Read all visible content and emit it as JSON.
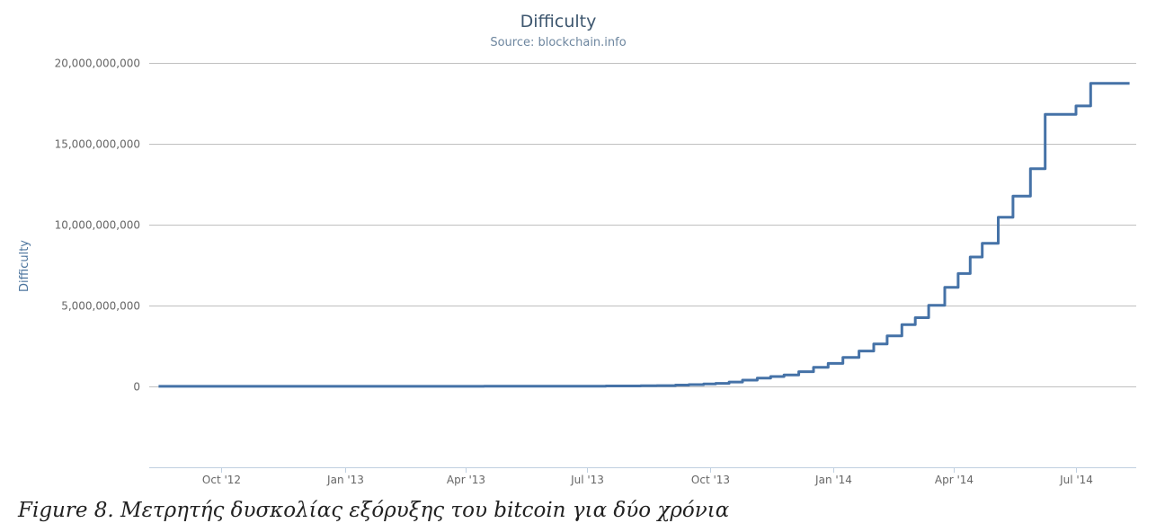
{
  "chart_data": {
    "type": "line",
    "title": "Difficulty",
    "subtitle": "Source: blockchain.info",
    "ylabel": "Difficulty",
    "xlabel": "",
    "ylim": [
      -5000000000,
      20000000000
    ],
    "yticks": [
      0,
      5000000000,
      10000000000,
      15000000000,
      20000000000
    ],
    "ytick_labels": [
      "0",
      "5,000,000,000",
      "10,000,000,000",
      "15,000,000,000",
      "20,000,000,000"
    ],
    "xlim": [
      "2012-08-08",
      "2014-08-15"
    ],
    "xticks": [
      "2012-10-01",
      "2013-01-01",
      "2013-04-01",
      "2013-07-01",
      "2013-10-01",
      "2014-01-01",
      "2014-04-01",
      "2014-07-01"
    ],
    "xtick_labels": [
      "Oct '12",
      "Jan '13",
      "Apr '13",
      "Jul '13",
      "Oct '13",
      "Jan '14",
      "Apr '14",
      "Jul '14"
    ],
    "grid": true,
    "legend": "none",
    "series_color": "#4572a7",
    "series": [
      {
        "step": true,
        "x": [
          "2012-08-15",
          "2012-09-15",
          "2012-10-15",
          "2012-11-15",
          "2012-12-15",
          "2013-01-15",
          "2013-02-15",
          "2013-03-15",
          "2013-04-15",
          "2013-05-15",
          "2013-06-15",
          "2013-07-15",
          "2013-08-10",
          "2013-08-22",
          "2013-09-05",
          "2013-09-15",
          "2013-09-26",
          "2013-10-05",
          "2013-10-15",
          "2013-10-25",
          "2013-11-05",
          "2013-11-15",
          "2013-11-25",
          "2013-12-06",
          "2013-12-17",
          "2013-12-28",
          "2014-01-08",
          "2014-01-20",
          "2014-01-31",
          "2014-02-10",
          "2014-02-21",
          "2014-03-03",
          "2014-03-13",
          "2014-03-25",
          "2014-04-04",
          "2014-04-13",
          "2014-04-22",
          "2014-05-04",
          "2014-05-15",
          "2014-05-28",
          "2014-06-08",
          "2014-06-20",
          "2014-07-01",
          "2014-07-12",
          "2014-07-25",
          "2014-08-05",
          "2014-08-10"
        ],
        "y": [
          2800000,
          3200000,
          3400000,
          3400000,
          3300000,
          3400000,
          3600000,
          4400000,
          8900000,
          12000000,
          15000000,
          26000000,
          37000000,
          50000000,
          86000000,
          112000000,
          148000000,
          190000000,
          270000000,
          390000000,
          510000000,
          610000000,
          710000000,
          910000000,
          1180000000,
          1420000000,
          1790000000,
          2190000000,
          2620000000,
          3130000000,
          3820000000,
          4250000000,
          5010000000,
          6120000000,
          6980000000,
          8000000000,
          8850000000,
          10460000000,
          11760000000,
          13460000000,
          16820000000,
          16820000000,
          17340000000,
          18740000000,
          18740000000,
          18740000000,
          18740000000
        ]
      }
    ]
  },
  "caption": "Figure 8. Μετρητής δυσκολίας εξόρυξης του bitcoin για δύο χρόνια"
}
